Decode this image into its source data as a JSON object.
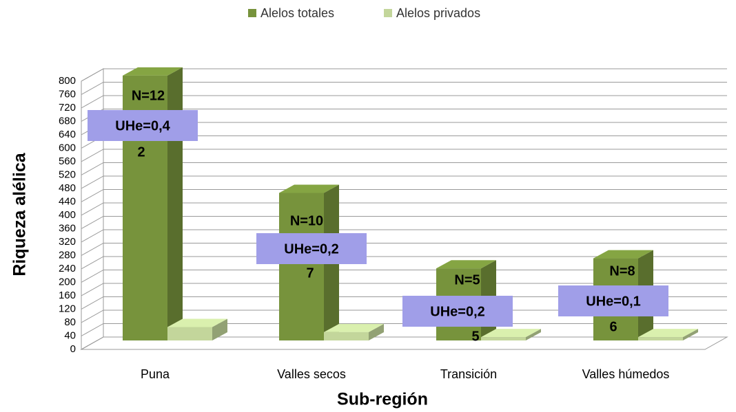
{
  "chart_data": {
    "type": "bar3d",
    "x_label": "Sub-región",
    "y_label": "Riqueza alélica",
    "categories": [
      "Puna",
      "Valles secos",
      "Transición",
      "Valles húmedos"
    ],
    "series": [
      {
        "name": "Alelos totales",
        "color": "#77933c",
        "values": [
          790,
          440,
          215,
          245
        ]
      },
      {
        "name": "Alelos privados",
        "color": "#c3d69b",
        "values": [
          40,
          25,
          10,
          10
        ]
      }
    ],
    "annotations": [
      {
        "n": "N=12",
        "uhe": [
          "UHe=0,4",
          "2"
        ]
      },
      {
        "n": "N=10",
        "uhe": [
          "UHe=0,2",
          "7"
        ]
      },
      {
        "n": "N=5",
        "uhe": [
          "UHe=0,2",
          "5"
        ]
      },
      {
        "n": "N=8",
        "uhe": [
          "UHe=0,1",
          "6"
        ]
      }
    ],
    "ylim": [
      0,
      800
    ],
    "yticks": [
      0,
      40,
      80,
      120,
      160,
      200,
      240,
      280,
      320,
      360,
      400,
      440,
      480,
      520,
      560,
      600,
      640,
      680,
      720,
      760,
      800
    ],
    "grid": true,
    "legend": "top"
  }
}
